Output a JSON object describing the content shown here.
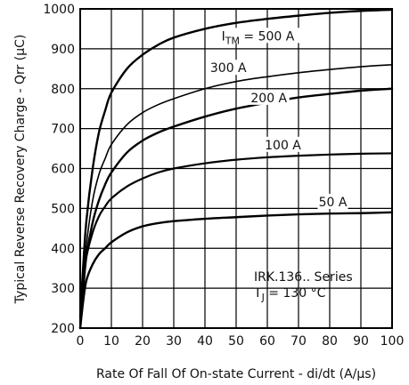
{
  "chart_data": {
    "type": "line",
    "xlabel": "Rate Of Fall Of On-state Current - di/dt (A/μs)",
    "ylabel": "Typical Reverse Recovery Charge - Qrr (μC)",
    "xlim": [
      0,
      100
    ],
    "ylim": [
      200,
      1000
    ],
    "xticks": [
      0,
      10,
      20,
      30,
      40,
      50,
      60,
      70,
      80,
      90,
      100
    ],
    "yticks": [
      200,
      300,
      400,
      500,
      600,
      700,
      800,
      900,
      1000
    ],
    "grid": true,
    "series_label_prefix": "I",
    "series_label_subscript": "TM",
    "series_label_eq": " = 500 A",
    "series": [
      {
        "name": "500 A",
        "x": [
          0,
          1,
          2,
          4,
          6,
          8,
          10,
          15,
          20,
          25,
          30,
          40,
          50,
          60,
          70,
          80,
          90,
          100
        ],
        "y": [
          230,
          360,
          470,
          600,
          690,
          745,
          790,
          850,
          885,
          910,
          928,
          950,
          965,
          975,
          983,
          990,
          995,
          998
        ]
      },
      {
        "name": "300 A",
        "x": [
          0,
          1,
          2,
          4,
          6,
          8,
          10,
          15,
          20,
          25,
          30,
          40,
          50,
          60,
          70,
          80,
          90,
          100
        ],
        "y": [
          210,
          320,
          410,
          520,
          585,
          625,
          660,
          710,
          740,
          760,
          775,
          800,
          818,
          830,
          840,
          848,
          855,
          860
        ]
      },
      {
        "name": "200 A",
        "x": [
          0,
          1,
          2,
          4,
          6,
          8,
          10,
          15,
          20,
          25,
          30,
          40,
          50,
          60,
          70,
          80,
          90,
          100
        ],
        "y": [
          200,
          300,
          380,
          465,
          520,
          560,
          590,
          640,
          670,
          690,
          705,
          730,
          750,
          765,
          778,
          787,
          795,
          800
        ]
      },
      {
        "name": "100 A",
        "x": [
          0,
          1,
          2,
          4,
          6,
          8,
          10,
          15,
          20,
          25,
          30,
          40,
          50,
          60,
          70,
          80,
          90,
          100
        ],
        "y": [
          250,
          330,
          380,
          440,
          480,
          505,
          525,
          555,
          575,
          590,
          600,
          613,
          622,
          628,
          632,
          635,
          637,
          638
        ]
      },
      {
        "name": "50 A",
        "x": [
          0,
          1,
          2,
          4,
          6,
          8,
          10,
          15,
          20,
          25,
          30,
          40,
          50,
          60,
          70,
          80,
          90,
          100
        ],
        "y": [
          200,
          270,
          320,
          360,
          385,
          400,
          415,
          440,
          455,
          463,
          468,
          474,
          478,
          482,
          485,
          487,
          488,
          490
        ]
      }
    ],
    "annotations": {
      "series_text": "IRK.136.. Series",
      "tj_prefix": "T",
      "tj_subscript": "J",
      "tj_value": " = 130 °C"
    }
  }
}
